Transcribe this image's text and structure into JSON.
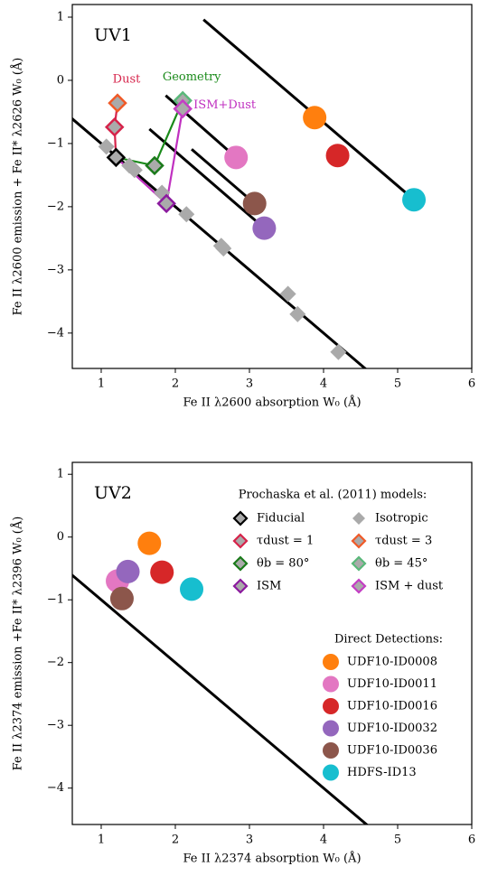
{
  "chart_data": [
    {
      "type": "scatter",
      "panel_label": "UV1",
      "xlabel": "Fe II λ2600 absorption W₀ (Å)",
      "ylabel": "Fe II λ2600 emission + Fe II* λ2626 W₀ (Å)",
      "xlim": [
        0.61,
        6.0
      ],
      "ylim": [
        -4.56,
        1.2
      ],
      "xticks": [
        1,
        2,
        3,
        4,
        5,
        6
      ],
      "yticks": [
        {
          "value": -4,
          "label": "−4"
        },
        {
          "value": -3,
          "label": "−3"
        },
        {
          "value": -2,
          "label": "−2"
        },
        {
          "value": -1,
          "label": "−1"
        },
        0,
        1
      ],
      "lines": [
        {
          "color": "#000000",
          "x": [
            0.6,
            4.6
          ],
          "y": [
            -0.6,
            -4.6
          ]
        },
        {
          "color": "#000000",
          "x": [
            2.38,
            5.22
          ],
          "y": [
            0.96,
            -1.89
          ]
        },
        {
          "color": "#000000",
          "x": [
            1.87,
            2.82
          ],
          "y": [
            -0.24,
            -1.22
          ]
        },
        {
          "color": "#000000",
          "x": [
            1.65,
            3.2
          ],
          "y": [
            -0.77,
            -2.34
          ]
        },
        {
          "color": "#000000",
          "x": [
            2.22,
            3.07
          ],
          "y": [
            -1.09,
            -1.95
          ]
        }
      ],
      "model_tracks": [
        {
          "text": "Dust",
          "color": "#d6234a",
          "label_side": "above",
          "x": [
            1.2,
            1.18,
            1.22
          ],
          "y": [
            -1.22,
            -0.74,
            -0.36
          ]
        },
        {
          "text": "Geometry",
          "color": "#1a8a1a",
          "label_side": "above",
          "x": [
            1.2,
            1.72,
            2.1
          ],
          "y": [
            -1.22,
            -1.35,
            -0.32
          ]
        },
        {
          "text": "ISM+Dust",
          "color": "#c030c0",
          "label_side": "right",
          "x": [
            1.2,
            1.88,
            2.1
          ],
          "y": [
            -1.22,
            -1.95,
            -0.45
          ]
        }
      ],
      "models": [
        {
          "edgecolor": "none",
          "facecolor": "#aaaaaa",
          "x": [
            1.07,
            1.38,
            1.45,
            1.82,
            2.15,
            2.62,
            2.65,
            3.52,
            3.65,
            4.2
          ],
          "y": [
            -1.05,
            -1.35,
            -1.42,
            -1.78,
            -2.12,
            -2.62,
            -2.66,
            -3.38,
            -3.7,
            -4.3
          ]
        },
        {
          "edgecolor": "#000000",
          "facecolor": "#aaaaaa",
          "x": [
            1.2
          ],
          "y": [
            -1.22
          ]
        },
        {
          "edgecolor": "#d6234a",
          "facecolor": "#aaaaaa",
          "x": [
            1.18
          ],
          "y": [
            -0.74
          ]
        },
        {
          "edgecolor": "#f05a28",
          "facecolor": "#aaaaaa",
          "x": [
            1.22
          ],
          "y": [
            -0.36
          ]
        },
        {
          "edgecolor": "#1a7a1a",
          "facecolor": "#aaaaaa",
          "x": [
            1.72
          ],
          "y": [
            -1.35
          ]
        },
        {
          "edgecolor": "#5ab87a",
          "facecolor": "#aaaaaa",
          "x": [
            2.1
          ],
          "y": [
            -0.32
          ]
        },
        {
          "edgecolor": "#8b1a9e",
          "facecolor": "#aaaaaa",
          "x": [
            1.88
          ],
          "y": [
            -1.95
          ]
        },
        {
          "edgecolor": "#c43ec4",
          "facecolor": "#aaaaaa",
          "x": [
            2.1
          ],
          "y": [
            -0.45
          ]
        }
      ],
      "series": [
        {
          "color": "#ff7f0e",
          "x": [
            3.88
          ],
          "y": [
            -0.59
          ]
        },
        {
          "color": "#e377c2",
          "x": [
            2.82
          ],
          "y": [
            -1.22
          ]
        },
        {
          "color": "#d62728",
          "x": [
            4.19
          ],
          "y": [
            -1.19
          ]
        },
        {
          "color": "#9467bd",
          "x": [
            3.2
          ],
          "y": [
            -2.34
          ]
        },
        {
          "color": "#8c564b",
          "x": [
            3.07
          ],
          "y": [
            -1.95
          ]
        },
        {
          "color": "#17becf",
          "x": [
            5.22
          ],
          "y": [
            -1.89
          ]
        }
      ]
    },
    {
      "type": "scatter",
      "panel_label": "UV2",
      "xlabel": "Fe II λ2374 absorption W₀ (Å)",
      "ylabel": "Fe II λ2374 emission +Fe II* λ2396 W₀ (Å)",
      "xlim": [
        0.61,
        6.0
      ],
      "ylim": [
        -4.58,
        1.19
      ],
      "xticks": [
        1,
        2,
        3,
        4,
        5,
        6
      ],
      "yticks": [
        {
          "value": -4,
          "label": "−4"
        },
        {
          "value": -3,
          "label": "−3"
        },
        {
          "value": -2,
          "label": "−2"
        },
        {
          "value": -1,
          "label": "−1"
        },
        0,
        1
      ],
      "lines": [
        {
          "color": "#000000",
          "x": [
            0.6,
            4.6
          ],
          "y": [
            -0.6,
            -4.6
          ]
        }
      ],
      "legend_title": "Prochaska et al. (2011) models:",
      "models": [
        {
          "name": "Fiducial",
          "edgecolor": "#000000",
          "facecolor": "#aaaaaa",
          "x": [],
          "y": []
        },
        {
          "name": "Isotropic",
          "edgecolor": "none",
          "facecolor": "#aaaaaa",
          "x": [],
          "y": []
        },
        {
          "name": "τdust = 1",
          "edgecolor": "#d6234a",
          "facecolor": "#aaaaaa",
          "x": [],
          "y": []
        },
        {
          "name": "τdust = 3",
          "edgecolor": "#f05a28",
          "facecolor": "#aaaaaa",
          "x": [],
          "y": []
        },
        {
          "name": "θb = 80°",
          "edgecolor": "#1a7a1a",
          "facecolor": "#aaaaaa",
          "x": [],
          "y": []
        },
        {
          "name": "θb = 45°",
          "edgecolor": "#5ab87a",
          "facecolor": "#aaaaaa",
          "x": [],
          "y": []
        },
        {
          "name": "ISM",
          "edgecolor": "#8b1a9e",
          "facecolor": "#aaaaaa",
          "x": [],
          "y": []
        },
        {
          "name": "ISM + dust",
          "edgecolor": "#c43ec4",
          "facecolor": "#aaaaaa",
          "x": [],
          "y": []
        }
      ],
      "series_title": "Direct Detections:",
      "series": [
        {
          "name": "UDF10-ID0008",
          "color": "#ff7f0e",
          "x": [
            1.65
          ],
          "y": [
            -0.1
          ]
        },
        {
          "name": "UDF10-ID0011",
          "color": "#e377c2",
          "x": [
            1.22
          ],
          "y": [
            -0.7
          ]
        },
        {
          "name": "UDF10-ID0016",
          "color": "#d62728",
          "x": [
            1.82
          ],
          "y": [
            -0.56
          ]
        },
        {
          "name": "UDF10-ID0032",
          "color": "#9467bd",
          "x": [
            1.36
          ],
          "y": [
            -0.55
          ]
        },
        {
          "name": "UDF10-ID0036",
          "color": "#8c564b",
          "x": [
            1.28
          ],
          "y": [
            -0.98
          ]
        },
        {
          "name": "HDFS-ID13",
          "color": "#17becf",
          "x": [
            2.22
          ],
          "y": [
            -0.83
          ]
        }
      ]
    }
  ]
}
